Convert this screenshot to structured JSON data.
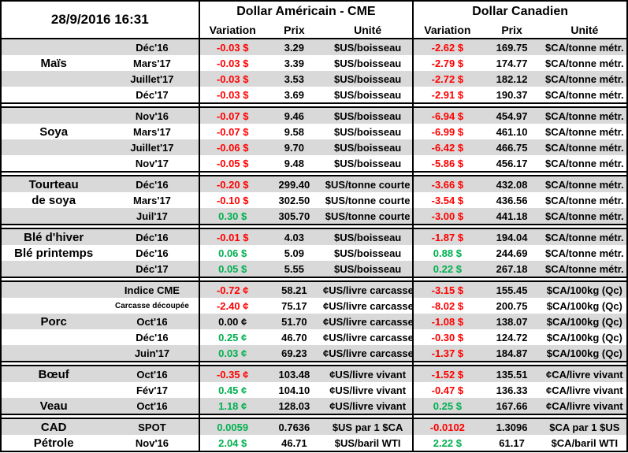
{
  "header": {
    "datetime": "28/9/2016 16:31",
    "us_title": "Dollar Américain - CME",
    "ca_title": "Dollar Canadien",
    "col_variation": "Variation",
    "col_prix": "Prix",
    "col_unite": "Unité"
  },
  "colors": {
    "negative": "#FF0000",
    "positive": "#00B050",
    "neutral": "#000000",
    "row_band": "#D9D9D9",
    "border": "#000000"
  },
  "chart_data": {
    "type": "table",
    "title": "Commodity futures prices table — 28/9/2016 16:31",
    "column_groups": [
      "Dollar Américain - CME",
      "Dollar Canadien"
    ],
    "columns": [
      "Variation",
      "Prix",
      "Unité",
      "Variation",
      "Prix",
      "Unité"
    ],
    "sections": [
      {
        "name": "mais",
        "rows": [
          {
            "label": "",
            "month": "Déc'16",
            "us_variation": "-0.03 $",
            "us_prix": "3.29",
            "us_unite": "$US/boisseau",
            "ca_variation": "-2.62 $",
            "ca_prix": "169.75",
            "ca_unite": "$CA/tonne métr."
          },
          {
            "label": "Maïs",
            "month": "Mars'17",
            "us_variation": "-0.03 $",
            "us_prix": "3.39",
            "us_unite": "$US/boisseau",
            "ca_variation": "-2.79 $",
            "ca_prix": "174.77",
            "ca_unite": "$CA/tonne métr."
          },
          {
            "label": "",
            "month": "Juillet'17",
            "us_variation": "-0.03 $",
            "us_prix": "3.53",
            "us_unite": "$US/boisseau",
            "ca_variation": "-2.72 $",
            "ca_prix": "182.12",
            "ca_unite": "$CA/tonne métr."
          },
          {
            "label": "",
            "month": "Déc'17",
            "us_variation": "-0.03 $",
            "us_prix": "3.69",
            "us_unite": "$US/boisseau",
            "ca_variation": "-2.91 $",
            "ca_prix": "190.37",
            "ca_unite": "$CA/tonne métr."
          }
        ]
      },
      {
        "name": "soya",
        "rows": [
          {
            "label": "",
            "month": "Nov'16",
            "us_variation": "-0.07 $",
            "us_prix": "9.46",
            "us_unite": "$US/boisseau",
            "ca_variation": "-6.94 $",
            "ca_prix": "454.97",
            "ca_unite": "$CA/tonne métr."
          },
          {
            "label": "Soya",
            "month": "Mars'17",
            "us_variation": "-0.07 $",
            "us_prix": "9.58",
            "us_unite": "$US/boisseau",
            "ca_variation": "-6.99 $",
            "ca_prix": "461.10",
            "ca_unite": "$CA/tonne métr."
          },
          {
            "label": "",
            "month": "Juillet'17",
            "us_variation": "-0.06 $",
            "us_prix": "9.70",
            "us_unite": "$US/boisseau",
            "ca_variation": "-6.42 $",
            "ca_prix": "466.75",
            "ca_unite": "$CA/tonne métr."
          },
          {
            "label": "",
            "month": "Nov'17",
            "us_variation": "-0.05 $",
            "us_prix": "9.48",
            "us_unite": "$US/boisseau",
            "ca_variation": "-5.86 $",
            "ca_prix": "456.17",
            "ca_unite": "$CA/tonne métr."
          }
        ]
      },
      {
        "name": "tourteau-de-soya",
        "rows": [
          {
            "label": "Tourteau",
            "month": "Déc'16",
            "us_variation": "-0.20 $",
            "us_prix": "299.40",
            "us_unite": "$US/tonne courte",
            "ca_variation": "-3.66 $",
            "ca_prix": "432.08",
            "ca_unite": "$CA/tonne métr."
          },
          {
            "label": "de soya",
            "month": "Mars'17",
            "us_variation": "-0.10 $",
            "us_prix": "302.50",
            "us_unite": "$US/tonne courte",
            "ca_variation": "-3.54 $",
            "ca_prix": "436.56",
            "ca_unite": "$CA/tonne métr."
          },
          {
            "label": "",
            "month": "Juil'17",
            "us_variation": "0.30 $",
            "us_prix": "305.70",
            "us_unite": "$US/tonne courte",
            "ca_variation": "-3.00 $",
            "ca_prix": "441.18",
            "ca_unite": "$CA/tonne métr."
          }
        ]
      },
      {
        "name": "ble",
        "rows": [
          {
            "label": "Blé d'hiver",
            "month": "Déc'16",
            "us_variation": "-0.01 $",
            "us_prix": "4.03",
            "us_unite": "$US/boisseau",
            "ca_variation": "-1.87 $",
            "ca_prix": "194.04",
            "ca_unite": "$CA/tonne métr."
          },
          {
            "label": "Blé printemps",
            "month": "Déc'16",
            "us_variation": "0.06 $",
            "us_prix": "5.09",
            "us_unite": "$US/boisseau",
            "ca_variation": "0.88 $",
            "ca_prix": "244.69",
            "ca_unite": "$CA/tonne métr."
          },
          {
            "label": "",
            "month": "Déc'17",
            "us_variation": "0.05 $",
            "us_prix": "5.55",
            "us_unite": "$US/boisseau",
            "ca_variation": "0.22 $",
            "ca_prix": "267.18",
            "ca_unite": "$CA/tonne métr."
          }
        ]
      },
      {
        "name": "porc",
        "rows": [
          {
            "label": "",
            "month": "Indice CME",
            "us_variation": "-0.72 ¢",
            "us_prix": "58.21",
            "us_unite": "¢US/livre carcasse",
            "ca_variation": "-3.15 $",
            "ca_prix": "155.45",
            "ca_unite": "$CA/100kg (Qc)"
          },
          {
            "label": "",
            "month": "Carcasse découpée",
            "us_variation": "-2.40 ¢",
            "us_prix": "75.17",
            "us_unite": "¢US/livre carcasse",
            "ca_variation": "-8.02 $",
            "ca_prix": "200.75",
            "ca_unite": "$CA/100kg (Qc)"
          },
          {
            "label": "Porc",
            "month": "Oct'16",
            "us_variation": "0.00 ¢",
            "us_prix": "51.70",
            "us_unite": "¢US/livre carcasse",
            "ca_variation": "-1.08 $",
            "ca_prix": "138.07",
            "ca_unite": "$CA/100kg (Qc)"
          },
          {
            "label": "",
            "month": "Déc'16",
            "us_variation": "0.25 ¢",
            "us_prix": "46.70",
            "us_unite": "¢US/livre carcasse",
            "ca_variation": "-0.30 $",
            "ca_prix": "124.72",
            "ca_unite": "$CA/100kg (Qc)"
          },
          {
            "label": "",
            "month": "Juin'17",
            "us_variation": "0.03 ¢",
            "us_prix": "69.23",
            "us_unite": "¢US/livre carcasse",
            "ca_variation": "-1.37 $",
            "ca_prix": "184.87",
            "ca_unite": "$CA/100kg (Qc)"
          }
        ]
      },
      {
        "name": "boeuf-veau",
        "rows": [
          {
            "label": "Bœuf",
            "month": "Oct'16",
            "us_variation": "-0.35 ¢",
            "us_prix": "103.48",
            "us_unite": "¢US/livre vivant",
            "ca_variation": "-1.52 $",
            "ca_prix": "135.51",
            "ca_unite": "¢CA/livre vivant"
          },
          {
            "label": "",
            "month": "Fév'17",
            "us_variation": "0.45 ¢",
            "us_prix": "104.10",
            "us_unite": "¢US/livre vivant",
            "ca_variation": "-0.47 $",
            "ca_prix": "136.33",
            "ca_unite": "¢CA/livre vivant"
          },
          {
            "label": "Veau",
            "month": "Oct'16",
            "us_variation": "1.18 ¢",
            "us_prix": "128.03",
            "us_unite": "¢US/livre vivant",
            "ca_variation": "0.25 $",
            "ca_prix": "167.66",
            "ca_unite": "¢CA/livre vivant"
          }
        ]
      },
      {
        "name": "cad-petrole",
        "rows": [
          {
            "label": "CAD",
            "month": "SPOT",
            "us_variation": "0.0059",
            "us_prix": "0.7636",
            "us_unite": "$US par 1 $CA",
            "ca_variation": "-0.0102",
            "ca_prix": "1.3096",
            "ca_unite": "$CA par 1 $US"
          },
          {
            "label": "Pétrole",
            "month": "Nov'16",
            "us_variation": "2.04 $",
            "us_prix": "46.71",
            "us_unite": "$US/baril WTI",
            "ca_variation": "2.22 $",
            "ca_prix": "61.17",
            "ca_unite": "$CA/baril WTI"
          }
        ]
      }
    ]
  }
}
